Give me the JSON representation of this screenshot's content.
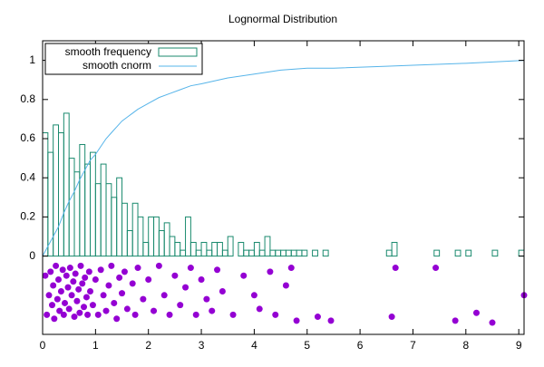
{
  "chart_data": {
    "type": "histogram",
    "title": "Lognormal Distribution",
    "xlim": [
      0,
      9.1
    ],
    "xticks": [
      0,
      1,
      2,
      3,
      4,
      5,
      6,
      7,
      8,
      9
    ],
    "ylim": [
      -0.4,
      1.1
    ],
    "yticks": [
      0,
      0.2,
      0.4,
      0.6,
      0.8,
      1
    ],
    "legend": "top-left",
    "histogram": {
      "name": "smooth frequency",
      "color": "#1a8a6e",
      "bins": [
        0,
        0.1,
        0.2,
        0.3,
        0.4,
        0.5,
        0.6,
        0.7,
        0.8,
        0.9,
        1,
        1.1,
        1.2,
        1.3,
        1.4,
        1.5,
        1.6,
        1.7,
        1.8,
        1.9,
        2,
        2.1,
        2.2,
        2.3,
        2.4,
        2.5,
        2.6,
        2.7,
        2.8,
        2.9,
        3,
        3.1,
        3.2,
        3.3,
        3.4,
        3.5,
        3.6,
        3.7,
        3.8,
        3.9,
        4,
        4.1,
        4.2,
        4.3,
        4.4,
        4.5,
        4.6,
        4.7,
        4.8,
        4.9,
        5,
        5.1,
        5.2,
        5.3,
        5.4,
        5.5,
        5.6,
        5.7,
        5.8,
        5.9,
        6,
        6.1,
        6.2,
        6.3,
        6.4,
        6.5,
        6.6,
        6.7,
        6.8,
        6.9,
        7,
        7.1,
        7.2,
        7.3,
        7.4,
        7.5,
        7.6,
        7.7,
        7.8,
        7.9,
        8,
        8.1,
        8.2,
        8.3,
        8.4,
        8.5,
        8.6,
        8.7,
        8.8,
        8.9,
        9,
        9.1
      ],
      "values": [
        0.63,
        0.53,
        0.67,
        0.63,
        0.73,
        0.5,
        0.43,
        0.57,
        0.47,
        0.53,
        0.37,
        0.47,
        0.37,
        0.3,
        0.4,
        0.27,
        0.13,
        0.27,
        0.2,
        0.07,
        0.2,
        0.2,
        0.13,
        0.17,
        0.1,
        0.07,
        0.03,
        0.2,
        0.07,
        0.03,
        0.07,
        0.03,
        0.07,
        0.07,
        0.03,
        0.1,
        0,
        0.07,
        0.03,
        0.03,
        0.07,
        0.03,
        0.1,
        0.03,
        0.03,
        0.03,
        0.03,
        0.03,
        0.03,
        0.03,
        0,
        0.03,
        0,
        0.03,
        0,
        0,
        0,
        0,
        0,
        0,
        0,
        0,
        0,
        0,
        0,
        0.03,
        0.07,
        0,
        0,
        0,
        0,
        0,
        0,
        0,
        0.03,
        0,
        0,
        0,
        0.03,
        0,
        0.03,
        0,
        0,
        0,
        0,
        0.03,
        0,
        0,
        0,
        0,
        0.03
      ]
    },
    "series": [
      {
        "name": "smooth cnorm",
        "color": "#56b4e9",
        "x": [
          0,
          0.1,
          0.2,
          0.3,
          0.4,
          0.5,
          0.6,
          0.7,
          0.8,
          0.9,
          1,
          1.1,
          1.2,
          1.3,
          1.4,
          1.5,
          1.6,
          1.7,
          1.8,
          2,
          2.2,
          2.4,
          2.6,
          2.8,
          3,
          3.5,
          4,
          4.5,
          5,
          5.5,
          6.5,
          7,
          8,
          9.1
        ],
        "values": [
          0,
          0.05,
          0.1,
          0.15,
          0.22,
          0.28,
          0.33,
          0.39,
          0.44,
          0.49,
          0.52,
          0.56,
          0.6,
          0.63,
          0.66,
          0.69,
          0.71,
          0.73,
          0.75,
          0.78,
          0.81,
          0.83,
          0.85,
          0.87,
          0.88,
          0.91,
          0.93,
          0.95,
          0.96,
          0.96,
          0.97,
          0.975,
          0.985,
          1
        ]
      }
    ],
    "points": {
      "color": "#9400d3",
      "x": [
        0.05,
        0.08,
        0.12,
        0.15,
        0.18,
        0.2,
        0.22,
        0.25,
        0.28,
        0.3,
        0.32,
        0.35,
        0.38,
        0.4,
        0.42,
        0.45,
        0.48,
        0.5,
        0.52,
        0.55,
        0.58,
        0.6,
        0.62,
        0.65,
        0.68,
        0.7,
        0.72,
        0.75,
        0.78,
        0.8,
        0.83,
        0.85,
        0.88,
        0.9,
        0.95,
        1,
        1.05,
        1.1,
        1.15,
        1.2,
        1.25,
        1.3,
        1.35,
        1.4,
        1.45,
        1.5,
        1.55,
        1.6,
        1.7,
        1.75,
        1.8,
        1.9,
        2,
        2.1,
        2.2,
        2.3,
        2.4,
        2.5,
        2.6,
        2.7,
        2.8,
        2.9,
        3,
        3.1,
        3.2,
        3.3,
        3.4,
        3.6,
        3.8,
        4,
        4.1,
        4.3,
        4.4,
        4.6,
        4.7,
        4.8,
        5.2,
        5.45,
        6.6,
        6.67,
        7.43,
        7.8,
        8.2,
        8.5,
        9.1
      ],
      "values": [
        -0.1,
        -0.3,
        -0.2,
        -0.08,
        -0.25,
        -0.15,
        -0.32,
        -0.05,
        -0.22,
        -0.12,
        -0.28,
        -0.18,
        -0.07,
        -0.3,
        -0.24,
        -0.1,
        -0.16,
        -0.27,
        -0.06,
        -0.2,
        -0.13,
        -0.31,
        -0.09,
        -0.23,
        -0.17,
        -0.29,
        -0.05,
        -0.14,
        -0.26,
        -0.11,
        -0.21,
        -0.3,
        -0.08,
        -0.18,
        -0.25,
        -0.12,
        -0.3,
        -0.07,
        -0.2,
        -0.28,
        -0.15,
        -0.05,
        -0.24,
        -0.32,
        -0.11,
        -0.19,
        -0.08,
        -0.27,
        -0.14,
        -0.3,
        -0.06,
        -0.22,
        -0.12,
        -0.28,
        -0.05,
        -0.2,
        -0.3,
        -0.1,
        -0.25,
        -0.16,
        -0.06,
        -0.3,
        -0.12,
        -0.22,
        -0.28,
        -0.07,
        -0.18,
        -0.3,
        -0.1,
        -0.2,
        -0.27,
        -0.08,
        -0.3,
        -0.15,
        -0.06,
        -0.33,
        -0.31,
        -0.33,
        -0.31,
        -0.06,
        -0.06,
        -0.33,
        -0.29,
        -0.34,
        -0.2
      ]
    }
  }
}
